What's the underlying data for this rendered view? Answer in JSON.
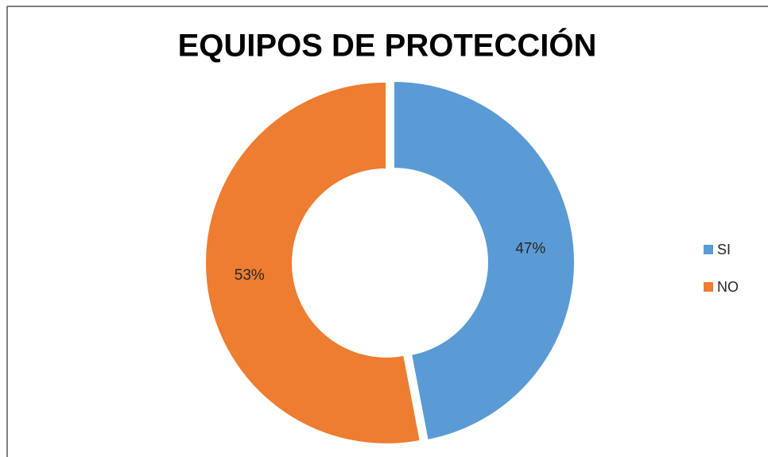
{
  "chart_data": {
    "type": "donut",
    "title": "EQUIPOS DE PROTECCIÓN",
    "categories": [
      "SI",
      "NO"
    ],
    "values": [
      47,
      53
    ],
    "value_labels": [
      "47%",
      "53%"
    ],
    "colors": [
      "#5b9bd5",
      "#ed7d31"
    ],
    "legend": "right"
  }
}
